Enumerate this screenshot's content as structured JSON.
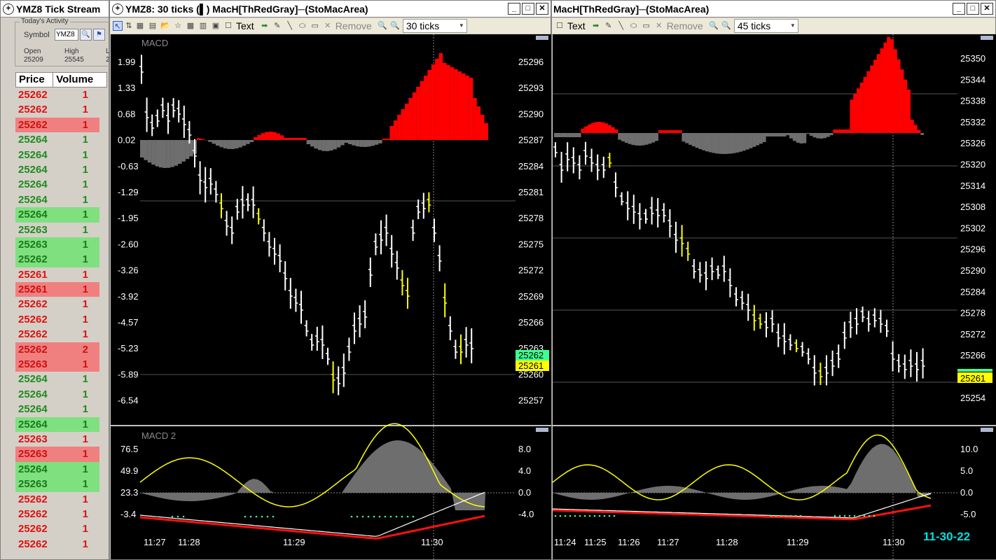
{
  "tick_window": {
    "title": "YMZ8 Tick Stream",
    "group_label": "Today's Activity",
    "symbol_label": "Symbol",
    "symbol_value": "YMZ8",
    "open_label": "Open",
    "open_value": "25209",
    "high_label": "High",
    "high_value": "25545",
    "low_label": "L",
    "low_value": "2",
    "col_price": "Price",
    "col_volume": "Volume",
    "rows": [
      {
        "price": "25262",
        "vol": "1",
        "dir": "dn",
        "hl": false
      },
      {
        "price": "25262",
        "vol": "1",
        "dir": "dn",
        "hl": false
      },
      {
        "price": "25262",
        "vol": "1",
        "dir": "dn",
        "hl": true
      },
      {
        "price": "25264",
        "vol": "1",
        "dir": "up",
        "hl": false
      },
      {
        "price": "25264",
        "vol": "1",
        "dir": "up",
        "hl": false
      },
      {
        "price": "25264",
        "vol": "1",
        "dir": "up",
        "hl": false
      },
      {
        "price": "25264",
        "vol": "1",
        "dir": "up",
        "hl": false
      },
      {
        "price": "25264",
        "vol": "1",
        "dir": "up",
        "hl": false
      },
      {
        "price": "25264",
        "vol": "1",
        "dir": "up",
        "hl": true
      },
      {
        "price": "25263",
        "vol": "1",
        "dir": "up",
        "hl": false
      },
      {
        "price": "25263",
        "vol": "1",
        "dir": "up",
        "hl": true
      },
      {
        "price": "25262",
        "vol": "1",
        "dir": "up",
        "hl": true
      },
      {
        "price": "25261",
        "vol": "1",
        "dir": "dn",
        "hl": false
      },
      {
        "price": "25261",
        "vol": "1",
        "dir": "dn",
        "hl": true
      },
      {
        "price": "25262",
        "vol": "1",
        "dir": "dn",
        "hl": false
      },
      {
        "price": "25262",
        "vol": "1",
        "dir": "dn",
        "hl": false
      },
      {
        "price": "25262",
        "vol": "1",
        "dir": "dn",
        "hl": false
      },
      {
        "price": "25262",
        "vol": "2",
        "dir": "dn",
        "hl": true
      },
      {
        "price": "25263",
        "vol": "1",
        "dir": "dn",
        "hl": true
      },
      {
        "price": "25264",
        "vol": "1",
        "dir": "up",
        "hl": false
      },
      {
        "price": "25264",
        "vol": "1",
        "dir": "up",
        "hl": false
      },
      {
        "price": "25264",
        "vol": "1",
        "dir": "up",
        "hl": false
      },
      {
        "price": "25264",
        "vol": "1",
        "dir": "up",
        "hl": true
      },
      {
        "price": "25263",
        "vol": "1",
        "dir": "dn",
        "hl": false
      },
      {
        "price": "25263",
        "vol": "1",
        "dir": "dn",
        "hl": true
      },
      {
        "price": "25264",
        "vol": "1",
        "dir": "up",
        "hl": true
      },
      {
        "price": "25263",
        "vol": "1",
        "dir": "up",
        "hl": true
      },
      {
        "price": "25262",
        "vol": "1",
        "dir": "dn",
        "hl": false
      },
      {
        "price": "25262",
        "vol": "1",
        "dir": "dn",
        "hl": false
      },
      {
        "price": "25262",
        "vol": "1",
        "dir": "dn",
        "hl": false
      },
      {
        "price": "25262",
        "vol": "1",
        "dir": "dn",
        "hl": false
      }
    ]
  },
  "chart1": {
    "title": "YMZ8: 30 ticks (▌) MacH[ThRedGray]─(StoMacArea)",
    "toolbar_text": "Text",
    "toolbar_remove": "Remove",
    "ticks_value": "30 ticks",
    "upper_label": "MACD",
    "lower_label": "MACD 2",
    "left_axis": [
      "1.99",
      "1.33",
      "0.68",
      "0.02",
      "-0.63",
      "-1.29",
      "-1.95",
      "-2.60",
      "-3.26",
      "-3.92",
      "-4.57",
      "-5.23",
      "-5.89",
      "-6.54"
    ],
    "right_axis": [
      "25296",
      "25293",
      "25290",
      "25287",
      "25284",
      "25281",
      "25278",
      "25275",
      "25272",
      "25269",
      "25266",
      "25263",
      "25260",
      "25257"
    ],
    "price_tag_green": "25262",
    "price_tag_yellow": "25261",
    "lower_left_axis": [
      "76.5",
      "49.9",
      "23.3",
      "-3.4"
    ],
    "lower_right_axis": [
      "8.0",
      "4.0",
      "0.0",
      "-4.0"
    ],
    "time_axis": [
      "11:27",
      "11:28",
      "11:29",
      "11:30"
    ]
  },
  "chart2": {
    "title": "MacH[ThRedGray]─(StoMacArea)",
    "toolbar_text": "Text",
    "toolbar_remove": "Remove",
    "ticks_value": "45 ticks",
    "right_axis": [
      "25350",
      "25344",
      "25338",
      "25332",
      "25326",
      "25320",
      "25314",
      "25308",
      "25302",
      "25296",
      "25290",
      "25284",
      "25278",
      "25272",
      "25266",
      "25260",
      "25254"
    ],
    "price_tag_yellow": "25261",
    "lower_right_axis": [
      "10.0",
      "5.0",
      "0.0",
      "-5.0"
    ],
    "time_axis": [
      "11:24",
      "11:25",
      "11:26",
      "11:27",
      "11:28",
      "11:29",
      "11:30"
    ],
    "date_label": "11-30-22"
  }
}
